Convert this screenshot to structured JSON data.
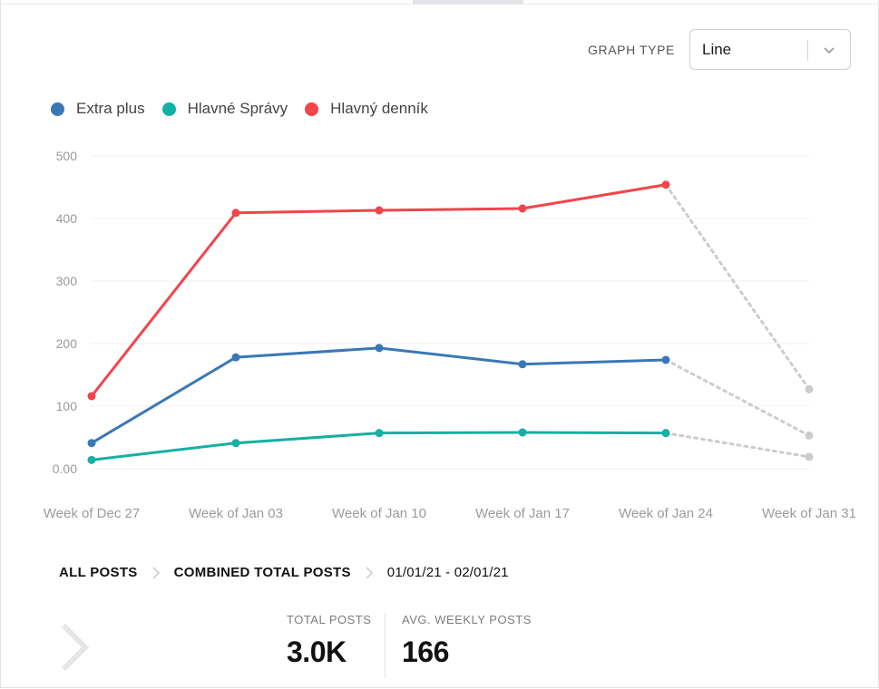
{
  "controls": {
    "graph_type_label": "GRAPH TYPE",
    "graph_type_value": "Line",
    "chevron_icon": "chevron-down-icon"
  },
  "chart_data": {
    "type": "line",
    "title": "",
    "xlabel": "",
    "ylabel": "",
    "categories": [
      "Week of Dec 27",
      "Week of Jan 03",
      "Week of Jan 10",
      "Week of Jan 17",
      "Week of Jan 24",
      "Week of Jan 31"
    ],
    "y_ticks": [
      "0.00",
      "100",
      "200",
      "300",
      "400",
      "500"
    ],
    "ylim": [
      0,
      500
    ],
    "grid": true,
    "legend_position": "top-left",
    "projected_last_point": true,
    "projected_color": "#cccccc",
    "series": [
      {
        "name": "Extra plus",
        "color": "#3a78b5",
        "values": [
          41,
          178,
          193,
          167,
          174,
          53
        ]
      },
      {
        "name": "Hlavné Správy",
        "color": "#14b0a3",
        "values": [
          14,
          41,
          57,
          58,
          57,
          19
        ]
      },
      {
        "name": "Hlavný denník",
        "color": "#f0454b",
        "values": [
          116,
          409,
          413,
          416,
          454,
          127
        ]
      }
    ]
  },
  "breadcrumb": {
    "items": [
      "ALL POSTS",
      "COMBINED TOTAL POSTS"
    ],
    "date_range": "01/01/21 - 02/01/21"
  },
  "stats": {
    "total_label": "TOTAL POSTS",
    "total_value": "3.0K",
    "avg_label": "AVG. WEEKLY POSTS",
    "avg_value": "166"
  }
}
